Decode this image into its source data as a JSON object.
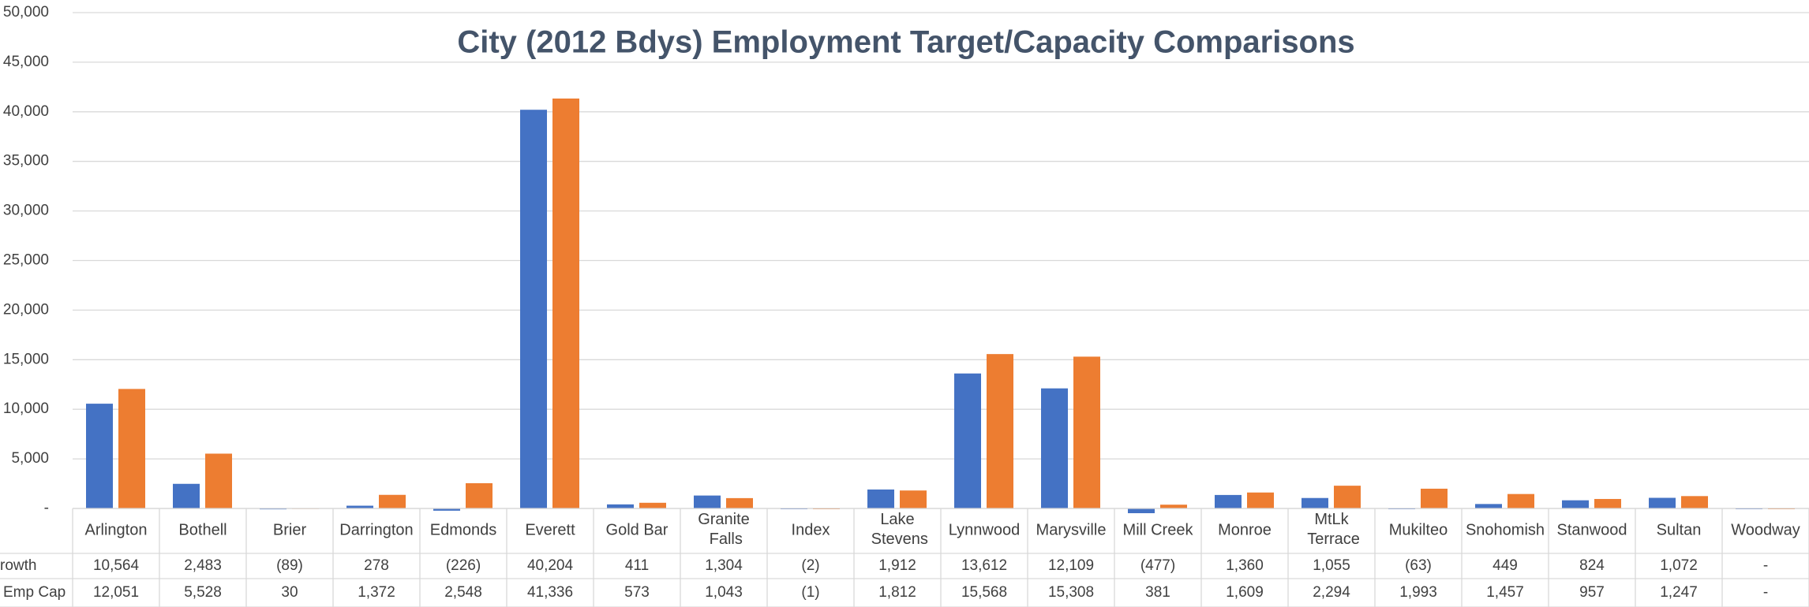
{
  "chart_data": {
    "type": "bar",
    "title": "City (2012 Bdys) Employment Target/Capacity Comparisons",
    "categories": [
      "Arlington",
      "Bothell",
      "Brier",
      "Darrington",
      "Edmonds",
      "Everett",
      "Gold Bar",
      "Granite Falls",
      "Index",
      "Lake Stevens",
      "Lynnwood",
      "Marysville",
      "Mill Creek",
      "Monroe",
      "MtLk Terrace",
      "Mukilteo",
      "Snohomish",
      "Stanwood",
      "Sultan",
      "Woodway"
    ],
    "series": [
      {
        "name": "rowth",
        "color": "#4472c4",
        "values": [
          10564,
          2483,
          -89,
          278,
          -226,
          40204,
          411,
          1304,
          -2,
          1912,
          13612,
          12109,
          -477,
          1360,
          1055,
          -63,
          449,
          824,
          1072,
          0
        ],
        "value_labels": [
          "10,564",
          "2,483",
          "(89)",
          "278",
          "(226)",
          "40,204",
          "411",
          "1,304",
          "(2)",
          "1,912",
          "13,612",
          "12,109",
          "(477)",
          "1,360",
          "1,055",
          "(63)",
          "449",
          "824",
          "1,072",
          "-"
        ]
      },
      {
        "name": "Emp Cap",
        "color": "#ed7d31",
        "values": [
          12051,
          5528,
          30,
          1372,
          2548,
          41336,
          573,
          1043,
          -1,
          1812,
          15568,
          15308,
          381,
          1609,
          2294,
          1993,
          1457,
          957,
          1247,
          0
        ],
        "value_labels": [
          "12,051",
          "5,528",
          "30",
          "1,372",
          "2,548",
          "41,336",
          "573",
          "1,043",
          "(1)",
          "1,812",
          "15,568",
          "15,308",
          "381",
          "1,609",
          "2,294",
          "1,993",
          "1,457",
          "957",
          "1,247",
          "-"
        ]
      }
    ],
    "ylim": [
      0,
      50000
    ],
    "yticks": [
      {
        "value": 0,
        "label": "-"
      },
      {
        "value": 5000,
        "label": "5,000"
      },
      {
        "value": 10000,
        "label": "10,000"
      },
      {
        "value": 15000,
        "label": "15,000"
      },
      {
        "value": 20000,
        "label": "20,000"
      },
      {
        "value": 25000,
        "label": "25,000"
      },
      {
        "value": 30000,
        "label": "30,000"
      },
      {
        "value": 35000,
        "label": "35,000"
      },
      {
        "value": 40000,
        "label": "40,000"
      },
      {
        "value": 45000,
        "label": "45,000"
      },
      {
        "value": 50000,
        "label": "50,000"
      }
    ],
    "grid": true
  }
}
